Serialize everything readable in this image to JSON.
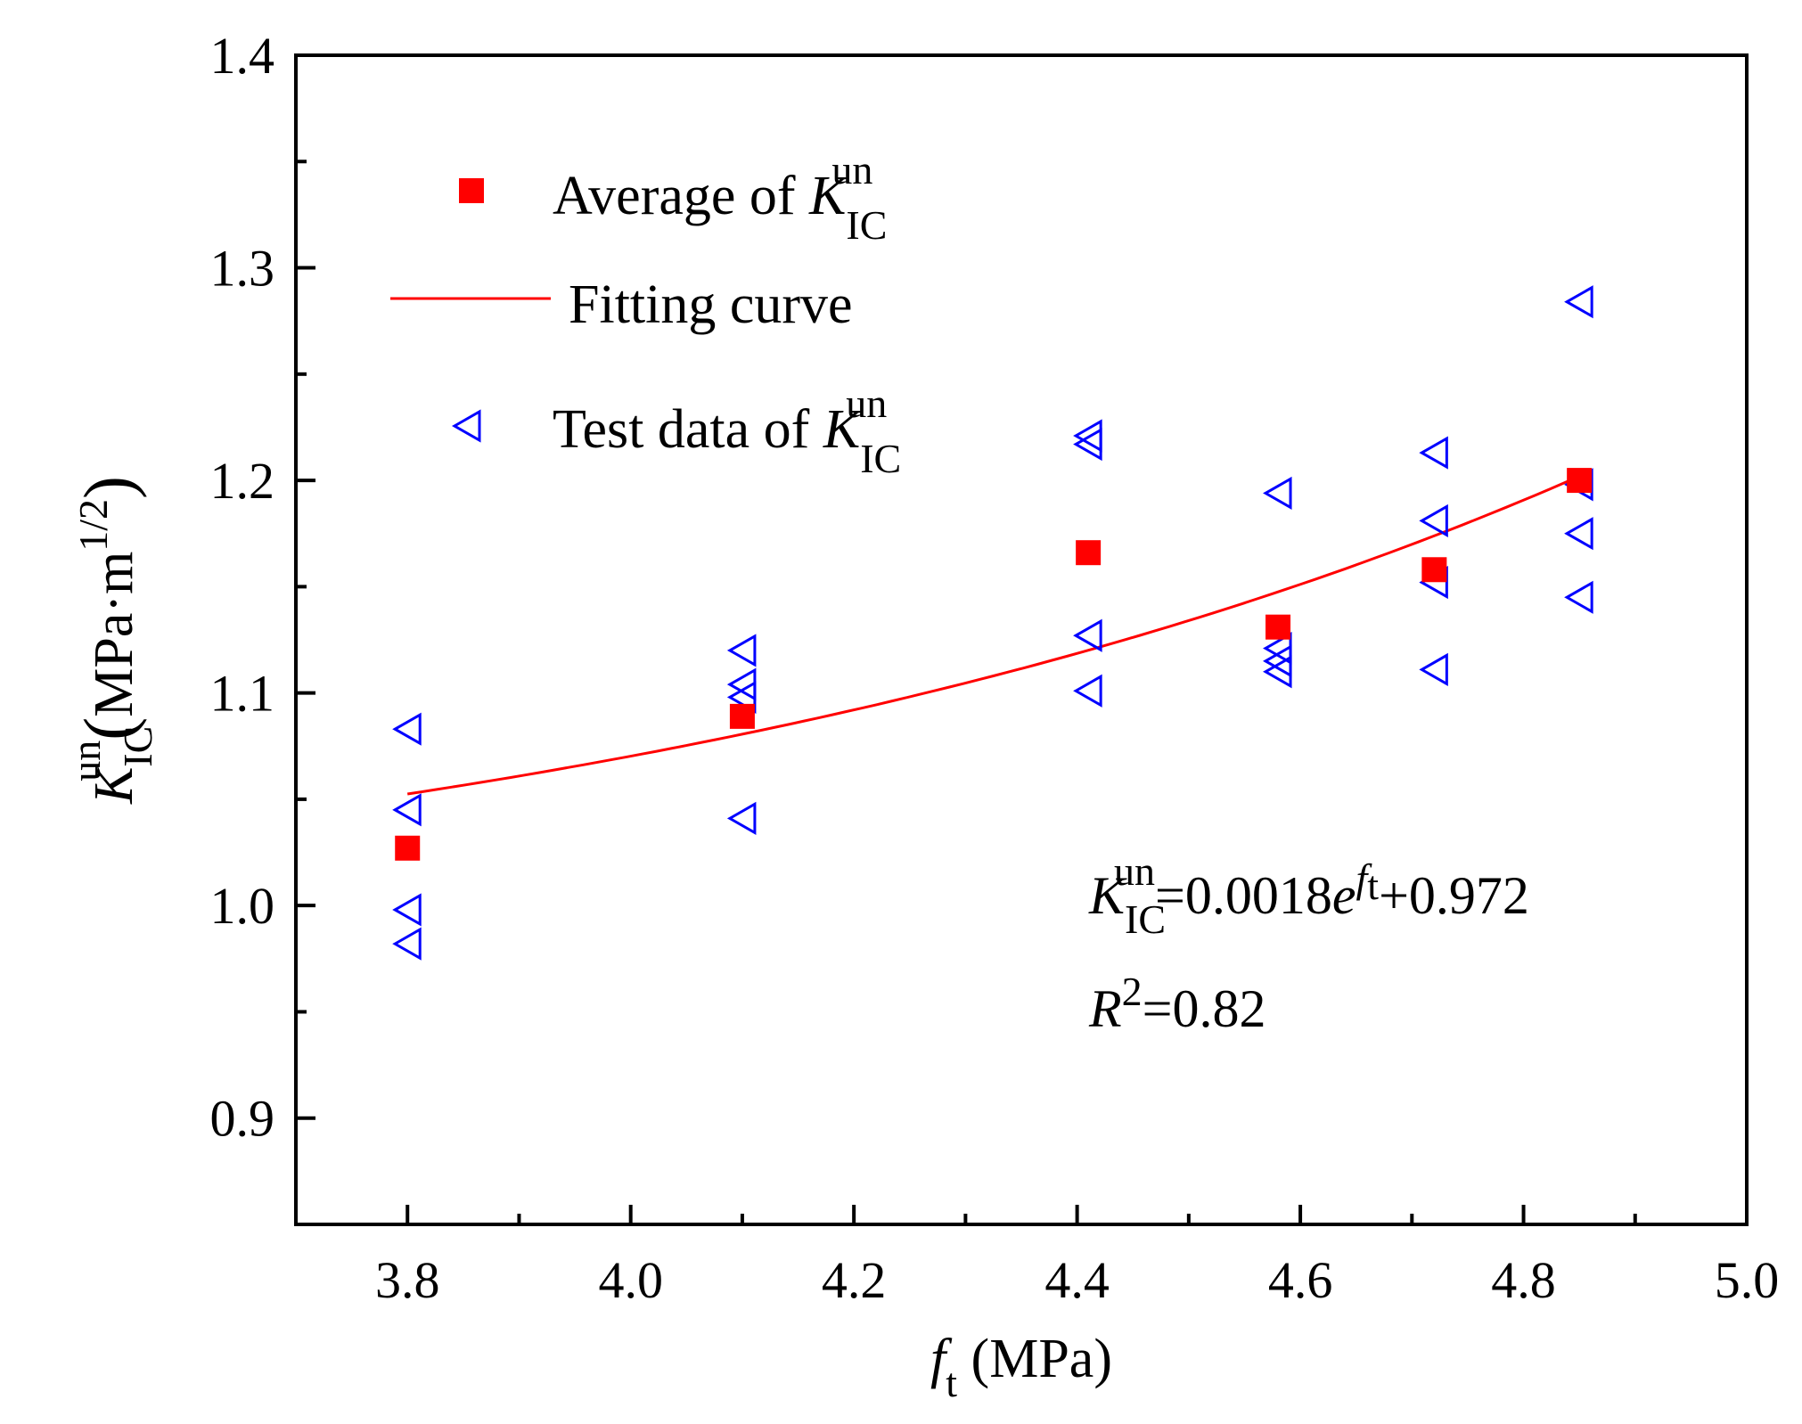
{
  "chart_data": {
    "type": "scatter",
    "xlim": [
      3.7,
      5.0
    ],
    "ylim": [
      0.85,
      1.4
    ],
    "x_ticks": [
      3.8,
      4.0,
      4.2,
      4.4,
      4.6,
      4.8,
      5.0
    ],
    "x_tick_labels": [
      "3.8",
      "4.0",
      "4.2",
      "4.4",
      "4.6",
      "4.8",
      "5.0"
    ],
    "y_ticks": [
      0.9,
      1.0,
      1.1,
      1.2,
      1.3,
      1.4
    ],
    "y_tick_labels": [
      "0.9",
      "1.0",
      "1.1",
      "1.2",
      "1.3",
      "1.4"
    ],
    "xlabel": {
      "var": "f",
      "sub": "t",
      "unit": " (MPa)"
    },
    "ylabel": {
      "var": "K",
      "sub": "IC",
      "sup": "un",
      "unit_open": "(",
      "unit_main": "MPa·m",
      "unit_sup": "1/2",
      "unit_close": ")"
    },
    "grid": false,
    "legend_placement": "top-left",
    "series": [
      {
        "name": "Average of K_IC^un",
        "legend": {
          "prefix": "Average of ",
          "var": "K",
          "sub": "IC",
          "sup": "un"
        },
        "marker": "square",
        "color": "#ff0000",
        "points": [
          [
            3.8,
            1.027
          ],
          [
            4.1,
            1.089
          ],
          [
            4.41,
            1.166
          ],
          [
            4.58,
            1.131
          ],
          [
            4.72,
            1.158
          ],
          [
            4.85,
            1.2
          ]
        ]
      },
      {
        "name": "Fitting curve",
        "legend": {
          "prefix": "Fitting curve"
        },
        "marker": "line",
        "color": "#ff0000",
        "function": {
          "a": 0.0018,
          "c": 0.972,
          "x_from": 3.8,
          "x_to": 4.85
        }
      },
      {
        "name": "Test data of K_IC^un",
        "legend": {
          "prefix": "Test data of ",
          "var": "K",
          "sub": "IC",
          "sup": "un"
        },
        "marker": "triangle-left",
        "color": "#0000ff",
        "points": [
          [
            3.8,
            1.083
          ],
          [
            3.8,
            1.045
          ],
          [
            3.8,
            0.998
          ],
          [
            3.8,
            0.982
          ],
          [
            4.1,
            1.12
          ],
          [
            4.1,
            1.104
          ],
          [
            4.1,
            1.098
          ],
          [
            4.1,
            1.041
          ],
          [
            4.41,
            1.221
          ],
          [
            4.41,
            1.217
          ],
          [
            4.41,
            1.127
          ],
          [
            4.41,
            1.101
          ],
          [
            4.58,
            1.194
          ],
          [
            4.58,
            1.121
          ],
          [
            4.58,
            1.115
          ],
          [
            4.58,
            1.11
          ],
          [
            4.72,
            1.213
          ],
          [
            4.72,
            1.181
          ],
          [
            4.72,
            1.152
          ],
          [
            4.72,
            1.111
          ],
          [
            4.85,
            1.284
          ],
          [
            4.85,
            1.198
          ],
          [
            4.85,
            1.175
          ],
          [
            4.85,
            1.145
          ]
        ]
      }
    ],
    "annotations": {
      "equation": {
        "var": "K",
        "sub": "IC",
        "sup": "un",
        "rhs_a": "=0.0018",
        "rhs_e": "e",
        "exp_var": "f",
        "exp_sub": "t",
        "rhs_c": "+0.972"
      },
      "r2": {
        "var": "R",
        "sup": "2",
        "rhs": "=0.82"
      }
    }
  }
}
